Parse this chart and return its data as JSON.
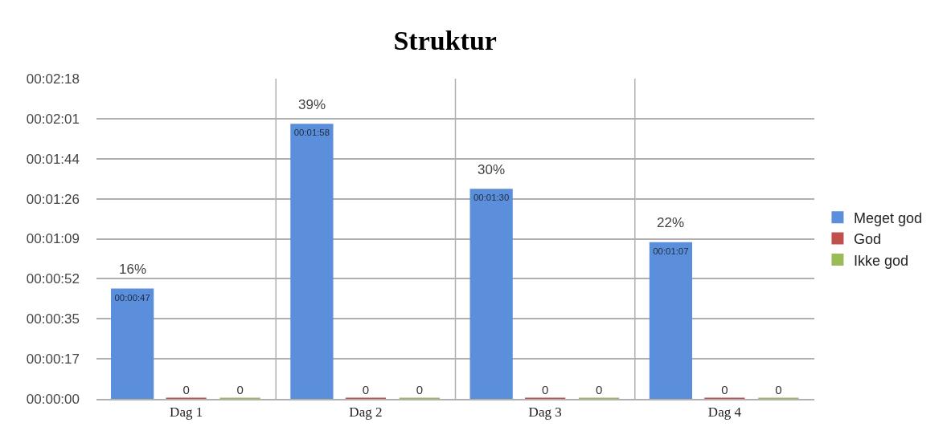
{
  "chart_data": {
    "type": "bar",
    "title": "Struktur",
    "categories": [
      "Dag 1",
      "Dag 2",
      "Dag 3",
      "Dag 4"
    ],
    "series": [
      {
        "name": "Meget god",
        "color": "#5b8fdc",
        "values": [
          47,
          118,
          90,
          67
        ],
        "value_labels": [
          "00:00:47",
          "00:01:58",
          "00:01:30",
          "00:01:07"
        ]
      },
      {
        "name": "God",
        "color": "#c0504d",
        "values": [
          0,
          0,
          0,
          0
        ],
        "value_labels": [
          "0",
          "0",
          "0",
          "0"
        ]
      },
      {
        "name": "Ikke god",
        "color": "#9bbb59",
        "values": [
          0,
          0,
          0,
          0
        ],
        "value_labels": [
          "0",
          "0",
          "0",
          "0"
        ]
      }
    ],
    "annotations": [
      "16%",
      "39%",
      "30%",
      "22%"
    ],
    "ylim": [
      0,
      138
    ],
    "yticks": [
      {
        "value": 0,
        "label": "00:00:00"
      },
      {
        "value": 17.25,
        "label": "00:00:17"
      },
      {
        "value": 34.5,
        "label": "00:00:35"
      },
      {
        "value": 51.75,
        "label": "00:00:52"
      },
      {
        "value": 69,
        "label": "00:01:09"
      },
      {
        "value": 86.25,
        "label": "00:01:26"
      },
      {
        "value": 103.5,
        "label": "00:01:44"
      },
      {
        "value": 120.75,
        "label": "00:02:01"
      },
      {
        "value": 138,
        "label": "00:02:18"
      }
    ],
    "grid": true,
    "legend": "right"
  }
}
